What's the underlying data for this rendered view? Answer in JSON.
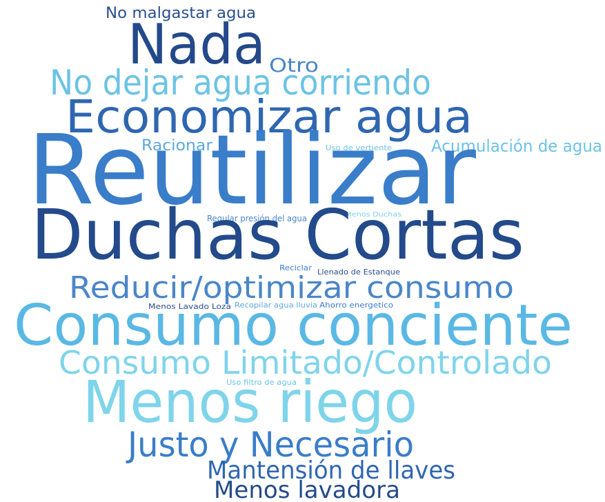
{
  "words": [
    "No malgastar agua",
    "Nada",
    "Otro",
    "No dejar agua corriendo",
    "Economizar agua",
    "Racionar",
    "Uso de vertiente",
    "Acumulación de agua",
    "Reutilizar",
    "Menos Duchas",
    "Regular presión del agua",
    "Duchas Cortas",
    "Reciclar",
    "Llenado de Estanque",
    "Reducir/optimizar consumo",
    "Menos Lavado Loza",
    "Recopilar agua lluvia",
    "Ahorro energetico",
    "Consumo conciente",
    "Consumo Limitado/Controlado",
    "Uso filtro de agua",
    "Menos riego",
    "Justo y Necesario",
    "Mantensión de llaves",
    "Menos lavadora"
  ]
}
